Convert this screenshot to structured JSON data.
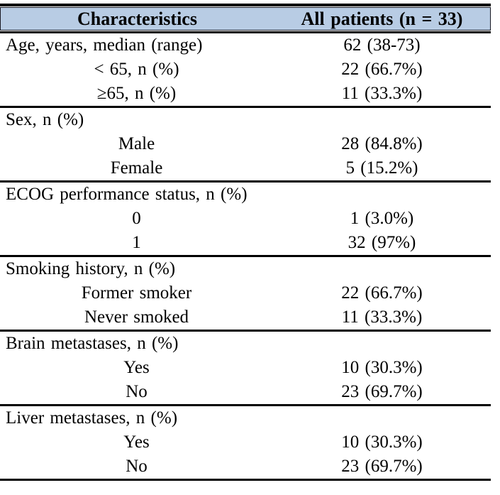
{
  "colors": {
    "header_bg": "#b8cce4",
    "rule": "#000000",
    "text": "#000000"
  },
  "table": {
    "header": {
      "characteristics": "Characteristics",
      "all_patients": "All patients (n = 33)"
    },
    "rows": [
      {
        "label": "Age, years, median (range)",
        "value": "62 (38-73)",
        "sub": false,
        "divider": false
      },
      {
        "label": "< 65, n (%)",
        "value": "22 (66.7%)",
        "sub": true,
        "divider": false
      },
      {
        "label": "≥65, n (%)",
        "value": "11 (33.3%)",
        "sub": true,
        "divider": false
      },
      {
        "label": "Sex, n (%)",
        "value": "",
        "sub": false,
        "divider": true
      },
      {
        "label": "Male",
        "value": "28 (84.8%)",
        "sub": true,
        "divider": false
      },
      {
        "label": "Female",
        "value": "5 (15.2%)",
        "sub": true,
        "divider": false
      },
      {
        "label": "ECOG performance status, n (%)",
        "value": "",
        "sub": false,
        "divider": true
      },
      {
        "label": "0",
        "value": "1 (3.0%)",
        "sub": true,
        "divider": false
      },
      {
        "label": "1",
        "value": "32 (97%)",
        "sub": true,
        "divider": false
      },
      {
        "label": "Smoking history, n (%)",
        "value": "",
        "sub": false,
        "divider": true
      },
      {
        "label": "Former smoker",
        "value": "22 (66.7%)",
        "sub": true,
        "divider": false
      },
      {
        "label": "Never smoked",
        "value": "11 (33.3%)",
        "sub": true,
        "divider": false
      },
      {
        "label": "Brain metastases, n (%)",
        "value": "",
        "sub": false,
        "divider": true
      },
      {
        "label": "Yes",
        "value": "10 (30.3%)",
        "sub": true,
        "divider": false
      },
      {
        "label": "No",
        "value": "23 (69.7%)",
        "sub": true,
        "divider": false
      },
      {
        "label": "Liver metastases, n (%)",
        "value": "",
        "sub": false,
        "divider": true
      },
      {
        "label": "Yes",
        "value": "10 (30.3%)",
        "sub": true,
        "divider": false
      },
      {
        "label": "No",
        "value": "23 (69.7%)",
        "sub": true,
        "divider": false
      }
    ]
  }
}
